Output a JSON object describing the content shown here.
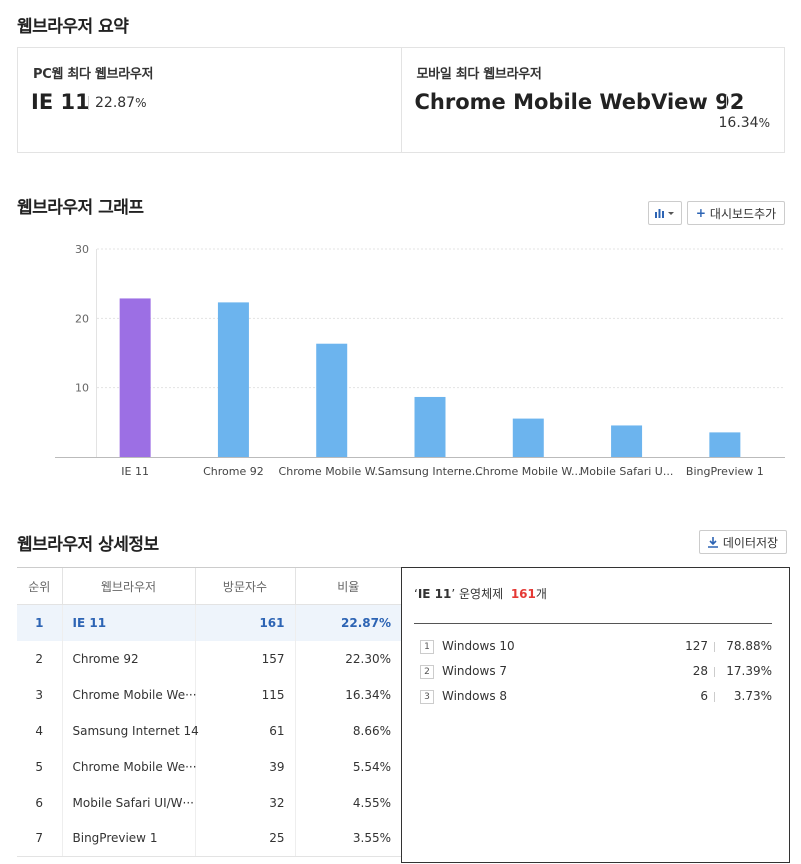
{
  "summary": {
    "title": "웹브라우저 요약",
    "pc": {
      "label": "PC웹 최다 웹브라우저",
      "name": "IE 11",
      "pct": "22.87",
      "unit": "%"
    },
    "mobile": {
      "label": "모바일 최다 웹브라우저",
      "name": "Chrome Mobile WebView 92",
      "pct": "16.34",
      "unit": "%"
    }
  },
  "graph": {
    "title": "웹브라우저 그래프",
    "chart_type_icon": "bar-chart-icon",
    "add_dashboard_label": "대시보드추가"
  },
  "chart_data": {
    "type": "bar",
    "categories": [
      "IE 11",
      "Chrome 92",
      "Chrome Mobile W...",
      "Samsung Interne...",
      "Chrome Mobile W...",
      "Mobile Safari U...",
      "BingPreview 1"
    ],
    "values": [
      22.87,
      22.3,
      16.34,
      8.66,
      5.54,
      4.55,
      3.55
    ],
    "ylim": [
      0,
      30
    ],
    "yticks": [
      10,
      20,
      30
    ],
    "highlight_index": 0,
    "colors": {
      "highlight": "#9c6fe4",
      "default": "#6cb4ee"
    },
    "grid": true
  },
  "details": {
    "title": "웹브라우저 상세정보",
    "save_label": "데이터저장",
    "columns": [
      "순위",
      "웹브라우저",
      "방문자수",
      "비율"
    ],
    "rows": [
      {
        "rank": "1",
        "name": "IE 11",
        "visits": "161",
        "ratio": "22.87%"
      },
      {
        "rank": "2",
        "name": "Chrome 92",
        "visits": "157",
        "ratio": "22.30%"
      },
      {
        "rank": "3",
        "name": "Chrome Mobile We···",
        "visits": "115",
        "ratio": "16.34%"
      },
      {
        "rank": "4",
        "name": "Samsung Internet 14",
        "visits": "61",
        "ratio": "8.66%"
      },
      {
        "rank": "5",
        "name": "Chrome Mobile We···",
        "visits": "39",
        "ratio": "5.54%"
      },
      {
        "rank": "6",
        "name": "Mobile Safari UI/W···",
        "visits": "32",
        "ratio": "4.55%"
      },
      {
        "rank": "7",
        "name": "BingPreview 1",
        "visits": "25",
        "ratio": "3.55%"
      }
    ]
  },
  "os_panel": {
    "browser": "IE 11",
    "label": "운영체제",
    "count": "161",
    "count_unit": "개",
    "items": [
      {
        "rank": "1",
        "name": "Windows 10",
        "count": "127",
        "pct": "78.88%"
      },
      {
        "rank": "2",
        "name": "Windows 7",
        "count": "28",
        "pct": "17.39%"
      },
      {
        "rank": "3",
        "name": "Windows 8",
        "count": "6",
        "pct": "3.73%"
      }
    ]
  }
}
